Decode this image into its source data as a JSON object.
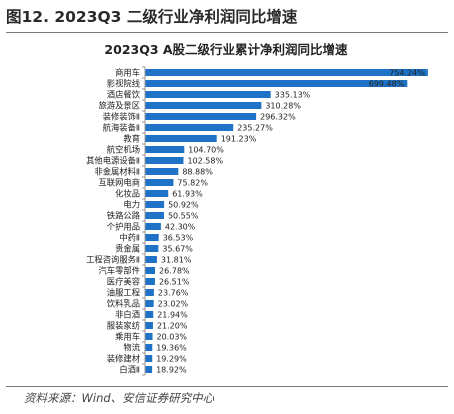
{
  "figure": {
    "title": "图12. 2023Q3 二级行业净利润同比增速",
    "source": "资料来源：Wind、安信证券研究中心"
  },
  "colors": {
    "bar": "#1f73c6",
    "axis": "#9a9a9a",
    "text": "#222222"
  },
  "chart_data": {
    "type": "bar",
    "orientation": "horizontal",
    "title": "2023Q3 A股二级行业累计净利润同比增速",
    "categories": [
      "商用车",
      "影视院线",
      "酒店餐饮",
      "旅游及景区",
      "装修装饰Ⅱ",
      "航海装备Ⅱ",
      "教育",
      "航空机场",
      "其他电源设备Ⅱ",
      "非金属材料Ⅱ",
      "互联网电商",
      "化妆品",
      "电力",
      "铁路公路",
      "个护用品",
      "中药Ⅱ",
      "贵金属",
      "工程咨询服务Ⅱ",
      "汽车零部件",
      "医疗美容",
      "油服工程",
      "饮料乳品",
      "非白酒",
      "服装家纺",
      "乘用车",
      "物流",
      "装修建材",
      "白酒Ⅱ"
    ],
    "values": [
      754.24,
      699.48,
      335.13,
      310.28,
      296.32,
      235.27,
      191.23,
      104.7,
      102.58,
      88.88,
      75.82,
      61.93,
      50.92,
      50.55,
      42.3,
      36.53,
      35.67,
      31.81,
      26.78,
      26.51,
      23.76,
      23.02,
      21.94,
      21.2,
      20.03,
      19.36,
      19.29,
      18.92
    ],
    "value_labels": [
      "754.24%",
      "699.48%",
      "335.13%",
      "310.28%",
      "296.32%",
      "235.27%",
      "191.23%",
      "104.70%",
      "102.58%",
      "88.88%",
      "75.82%",
      "61.93%",
      "50.92%",
      "50.55%",
      "42.30%",
      "36.53%",
      "35.67%",
      "31.81%",
      "26.78%",
      "26.51%",
      "23.76%",
      "23.02%",
      "21.94%",
      "21.20%",
      "20.03%",
      "19.36%",
      "19.29%",
      "18.92%"
    ],
    "unit": "%",
    "xlim": [
      0,
      760
    ],
    "grid": false,
    "legend": false
  }
}
